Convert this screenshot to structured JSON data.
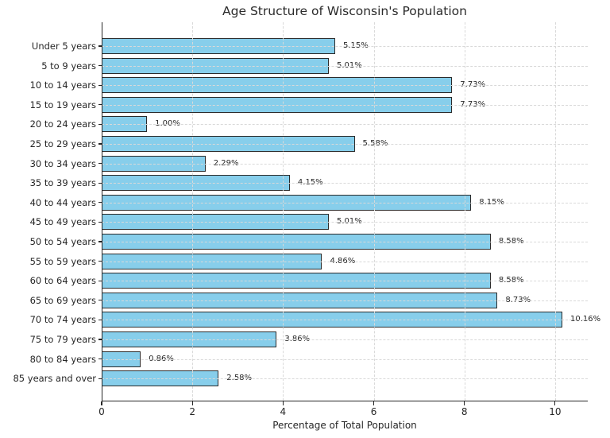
{
  "chart_data": {
    "type": "bar",
    "orientation": "horizontal",
    "title": "Age Structure of Wisconsin's Population",
    "xlabel": "Percentage of Total Population",
    "ylabel": "",
    "categories": [
      "Under 5 years",
      "5 to 9 years",
      "10 to 14 years",
      "15 to 19 years",
      "20 to 24 years",
      "25 to 29 years",
      "30 to 34 years",
      "35 to 39 years",
      "40 to 44 years",
      "45 to 49 years",
      "50 to 54 years",
      "55 to 59 years",
      "60 to 64 years",
      "65 to 69 years",
      "70 to 74 years",
      "75 to 79 years",
      "80 to 84 years",
      "85 years and over"
    ],
    "values": [
      5.15,
      5.01,
      7.73,
      7.73,
      1.0,
      5.58,
      2.29,
      4.15,
      8.15,
      5.01,
      8.58,
      4.86,
      8.58,
      8.73,
      10.16,
      3.86,
      0.86,
      2.58
    ],
    "value_labels": [
      "5.15%",
      "5.01%",
      "7.73%",
      "7.73%",
      "1.00%",
      "5.58%",
      "2.29%",
      "4.15%",
      "8.15%",
      "5.01%",
      "8.58%",
      "4.86%",
      "8.58%",
      "8.73%",
      "10.16%",
      "3.86%",
      "0.86%",
      "2.58%"
    ],
    "xlim": [
      0,
      10.72
    ],
    "xticks": [
      0,
      2,
      4,
      6,
      8,
      10
    ],
    "xtick_labels": [
      "0",
      "2",
      "4",
      "6",
      "8",
      "10"
    ],
    "grid": true,
    "grid_style": "dashed",
    "legend": null,
    "colors": {
      "bar_fill": "#87CEEB",
      "bar_edge": "#2b2b2b",
      "grid": "#d9d9d9",
      "axis": "#262626",
      "text": "#262626",
      "background": "#ffffff"
    }
  }
}
